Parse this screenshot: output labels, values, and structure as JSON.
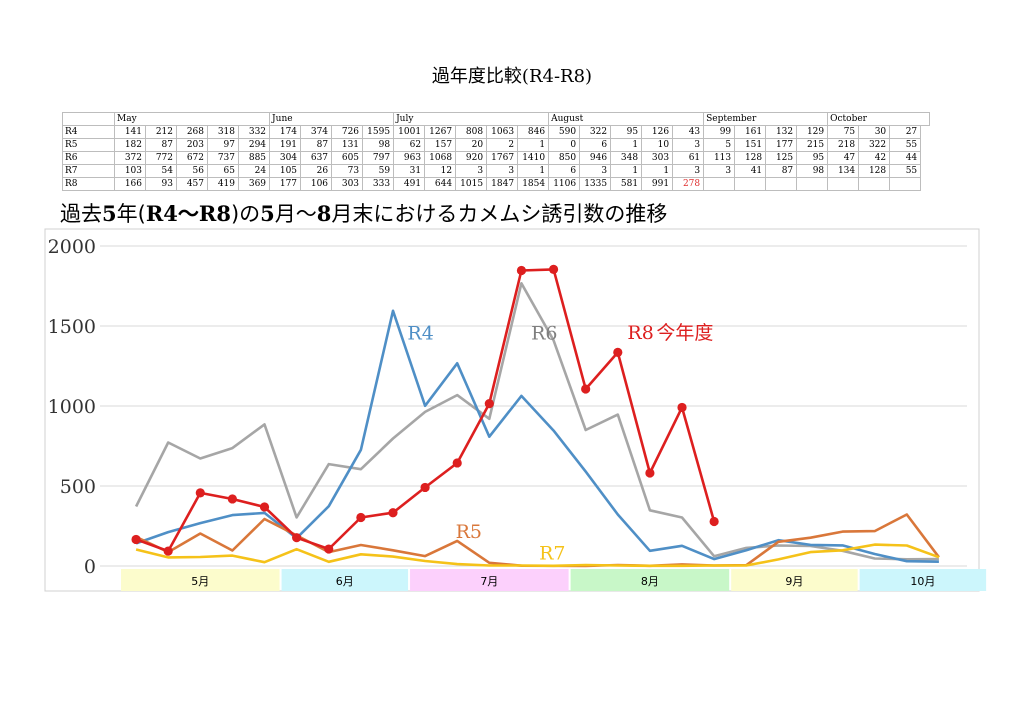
{
  "doc_title": "過年度比較(R4-R8)",
  "table": {
    "months": [
      "May",
      "June",
      "July",
      "August",
      "September",
      "October"
    ],
    "rows": [
      {
        "label": "R4",
        "values": [
          "141",
          "212",
          "268",
          "318",
          "332",
          "174",
          "374",
          "726",
          "1595",
          "1001",
          "1267",
          "808",
          "1063",
          "846",
          "590",
          "322",
          "95",
          "126",
          "43",
          "99",
          "161",
          "132",
          "129",
          "75",
          "30",
          "27"
        ]
      },
      {
        "label": "R5",
        "values": [
          "182",
          "87",
          "203",
          "97",
          "294",
          "191",
          "87",
          "131",
          "98",
          "62",
          "157",
          "20",
          "2",
          "1",
          "0",
          "6",
          "1",
          "10",
          "3",
          "5",
          "151",
          "177",
          "215",
          "218",
          "322",
          "55"
        ]
      },
      {
        "label": "R6",
        "values": [
          "372",
          "772",
          "672",
          "737",
          "885",
          "304",
          "637",
          "605",
          "797",
          "963",
          "1068",
          "920",
          "1767",
          "1410",
          "850",
          "946",
          "348",
          "303",
          "61",
          "113",
          "128",
          "125",
          "95",
          "47",
          "42",
          "44"
        ]
      },
      {
        "label": "R7",
        "values": [
          "103",
          "54",
          "56",
          "65",
          "24",
          "105",
          "26",
          "73",
          "59",
          "31",
          "12",
          "3",
          "3",
          "1",
          "6",
          "3",
          "1",
          "1",
          "3",
          "3",
          "41",
          "87",
          "98",
          "134",
          "128",
          "55"
        ]
      },
      {
        "label": "R8",
        "values": [
          "166",
          "93",
          "457",
          "419",
          "369",
          "177",
          "106",
          "303",
          "333",
          "491",
          "644",
          "1015",
          "1847",
          "1854",
          "1106",
          "1335",
          "581",
          "991",
          "278",
          "",
          "",
          "",
          "",
          "",
          "",
          ""
        ]
      }
    ]
  },
  "chart_title": {
    "p1": "過去",
    "b1": "5",
    "p2": "年(",
    "b2": "R4～R8",
    "p3": ")の",
    "b3": "5",
    "p4": "月～",
    "b4": "8",
    "p5": "月末におけるカメムシ誘引数の推移"
  },
  "chart_data": {
    "type": "line",
    "ylim": [
      0,
      2000
    ],
    "yticks": [
      "0",
      "500",
      "1000",
      "1500",
      "2000"
    ],
    "grid": true,
    "month_bands": [
      {
        "label": "5月",
        "color": "#fcfccc"
      },
      {
        "label": "6月",
        "color": "#ccf6fc"
      },
      {
        "label": "7月",
        "color": "#fcd0fc"
      },
      {
        "label": "8月",
        "color": "#c8f7c8"
      },
      {
        "label": "9月",
        "color": "#fcfccc"
      },
      {
        "label": "10月",
        "color": "#ccf6fc"
      }
    ],
    "series": [
      {
        "name": "R4",
        "color": "#4f8fc6",
        "values": [
          141,
          212,
          268,
          318,
          332,
          174,
          374,
          726,
          1595,
          1001,
          1267,
          808,
          1063,
          846,
          590,
          322,
          95,
          126,
          43,
          99,
          161,
          132,
          129,
          75,
          30,
          27
        ]
      },
      {
        "name": "R5",
        "color": "#d9773a",
        "values": [
          182,
          87,
          203,
          97,
          294,
          191,
          87,
          131,
          98,
          62,
          157,
          20,
          2,
          1,
          0,
          6,
          1,
          10,
          3,
          5,
          151,
          177,
          215,
          218,
          322,
          55
        ]
      },
      {
        "name": "R6",
        "color": "#a6a6a6",
        "values": [
          372,
          772,
          672,
          737,
          885,
          304,
          637,
          605,
          797,
          963,
          1068,
          920,
          1767,
          1410,
          850,
          946,
          348,
          303,
          61,
          113,
          128,
          125,
          95,
          47,
          42,
          44
        ]
      },
      {
        "name": "R7",
        "color": "#f5c219",
        "values": [
          103,
          54,
          56,
          65,
          24,
          105,
          26,
          73,
          59,
          31,
          12,
          3,
          3,
          1,
          6,
          3,
          1,
          1,
          3,
          3,
          41,
          87,
          98,
          134,
          128,
          55
        ]
      },
      {
        "name": "R8",
        "color": "#dd1f1f",
        "markers": true,
        "values": [
          166,
          93,
          457,
          419,
          369,
          177,
          106,
          303,
          333,
          491,
          644,
          1015,
          1847,
          1854,
          1106,
          1335,
          581,
          991,
          278
        ]
      }
    ],
    "annotations": [
      {
        "text": "R4",
        "color": "#4f8fc6",
        "x_index": 8.45,
        "y": 1415
      },
      {
        "text": "R6",
        "color": "#7f7f7f",
        "x_index": 12.3,
        "y": 1415
      },
      {
        "text": "R8",
        "color": "#dd1f1f",
        "x_index": 15.3,
        "y": 1420
      },
      {
        "text": "今年度",
        "color": "#dd1f1f",
        "x_index": 16.2,
        "y": 1420
      },
      {
        "text": "R5",
        "color": "#d9773a",
        "x_index": 9.95,
        "y": 175
      },
      {
        "text": "R7",
        "color": "#f5c219",
        "x_index": 12.55,
        "y": 40
      }
    ]
  }
}
